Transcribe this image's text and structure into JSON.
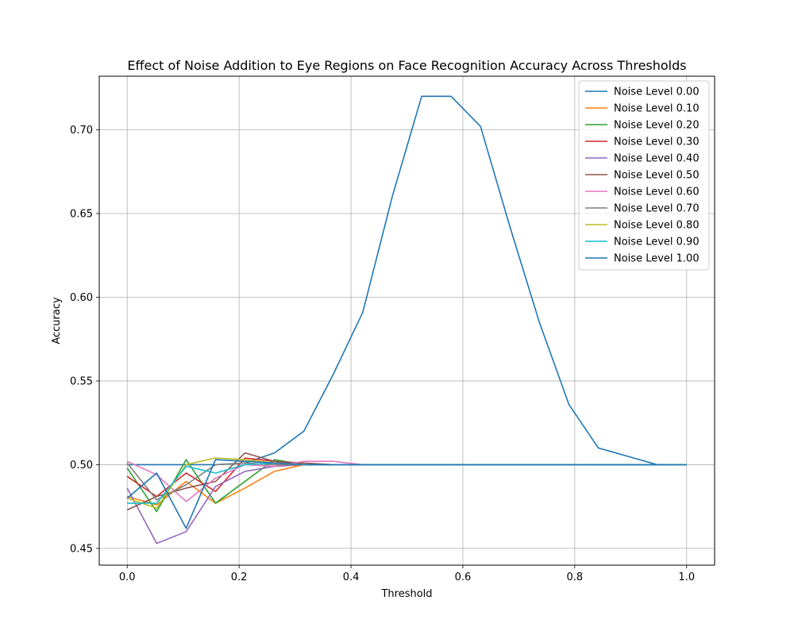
{
  "chart_data": {
    "type": "line",
    "title": "Effect of Noise Addition to Eye Regions on Face Recognition Accuracy Across Thresholds",
    "xlabel": "Threshold",
    "ylabel": "Accuracy",
    "xlim": [
      -0.05,
      1.05
    ],
    "ylim": [
      0.44,
      0.732
    ],
    "xticks": [
      0.0,
      0.2,
      0.4,
      0.6,
      0.8,
      1.0
    ],
    "xtick_labels": [
      "0.0",
      "0.2",
      "0.4",
      "0.6",
      "0.8",
      "1.0"
    ],
    "yticks": [
      0.45,
      0.5,
      0.55,
      0.6,
      0.65,
      0.7
    ],
    "ytick_labels": [
      "0.45",
      "0.50",
      "0.55",
      "0.60",
      "0.65",
      "0.70"
    ],
    "grid": true,
    "legend_position": "top-right",
    "x": [
      0.0,
      0.0526,
      0.1053,
      0.1579,
      0.2105,
      0.2632,
      0.3158,
      0.3684,
      0.4211,
      0.4737,
      0.5263,
      0.5789,
      0.6316,
      0.6842,
      0.7368,
      0.7895,
      0.8421,
      0.8947,
      0.9474,
      1.0
    ],
    "series": [
      {
        "name": "Noise Level 0.00",
        "color": "#1f77b4",
        "values": [
          0.5,
          0.5,
          0.5,
          0.5,
          0.501,
          0.507,
          0.52,
          0.554,
          0.591,
          0.66,
          0.72,
          0.72,
          0.702,
          0.642,
          0.585,
          0.536,
          0.51,
          0.505,
          0.5,
          0.5
        ]
      },
      {
        "name": "Noise Level 0.10",
        "color": "#ff7f0e",
        "values": [
          0.481,
          0.476,
          0.49,
          0.477,
          0.486,
          0.496,
          0.5,
          0.5,
          0.5,
          0.5,
          0.5,
          0.5,
          0.5,
          0.5,
          0.5,
          0.5,
          0.5,
          0.5,
          0.5,
          0.5
        ]
      },
      {
        "name": "Noise Level 0.20",
        "color": "#2ca02c",
        "values": [
          0.498,
          0.472,
          0.503,
          0.477,
          0.49,
          0.503,
          0.5,
          0.5,
          0.5,
          0.5,
          0.5,
          0.5,
          0.5,
          0.5,
          0.5,
          0.5,
          0.5,
          0.5,
          0.5,
          0.5
        ]
      },
      {
        "name": "Noise Level 0.30",
        "color": "#d62728",
        "values": [
          0.493,
          0.481,
          0.495,
          0.484,
          0.504,
          0.502,
          0.5,
          0.5,
          0.5,
          0.5,
          0.5,
          0.5,
          0.5,
          0.5,
          0.5,
          0.5,
          0.5,
          0.5,
          0.5,
          0.5
        ]
      },
      {
        "name": "Noise Level 0.40",
        "color": "#9467bd",
        "values": [
          0.486,
          0.453,
          0.46,
          0.487,
          0.496,
          0.499,
          0.5,
          0.5,
          0.5,
          0.5,
          0.5,
          0.5,
          0.5,
          0.5,
          0.5,
          0.5,
          0.5,
          0.5,
          0.5,
          0.5
        ]
      },
      {
        "name": "Noise Level 0.50",
        "color": "#8c564b",
        "values": [
          0.473,
          0.481,
          0.486,
          0.49,
          0.507,
          0.502,
          0.501,
          0.5,
          0.5,
          0.5,
          0.5,
          0.5,
          0.5,
          0.5,
          0.5,
          0.5,
          0.5,
          0.5,
          0.5,
          0.5
        ]
      },
      {
        "name": "Noise Level 0.60",
        "color": "#e377c2",
        "values": [
          0.502,
          0.494,
          0.478,
          0.492,
          0.5,
          0.499,
          0.502,
          0.502,
          0.5,
          0.5,
          0.5,
          0.5,
          0.5,
          0.5,
          0.5,
          0.5,
          0.5,
          0.5,
          0.5,
          0.5
        ]
      },
      {
        "name": "Noise Level 0.70",
        "color": "#7f7f7f",
        "values": [
          0.501,
          0.479,
          0.488,
          0.5,
          0.501,
          0.5,
          0.5,
          0.5,
          0.5,
          0.5,
          0.5,
          0.5,
          0.5,
          0.5,
          0.5,
          0.5,
          0.5,
          0.5,
          0.5,
          0.5
        ]
      },
      {
        "name": "Noise Level 0.80",
        "color": "#bcbd22",
        "values": [
          0.48,
          0.474,
          0.5,
          0.504,
          0.503,
          0.501,
          0.5,
          0.5,
          0.5,
          0.5,
          0.5,
          0.5,
          0.5,
          0.5,
          0.5,
          0.5,
          0.5,
          0.5,
          0.5,
          0.5
        ]
      },
      {
        "name": "Noise Level 0.90",
        "color": "#17becf",
        "values": [
          0.477,
          0.477,
          0.499,
          0.495,
          0.5,
          0.501,
          0.5,
          0.5,
          0.5,
          0.5,
          0.5,
          0.5,
          0.5,
          0.5,
          0.5,
          0.5,
          0.5,
          0.5,
          0.5,
          0.5
        ]
      },
      {
        "name": "Noise Level 1.00",
        "color": "#1f77b4",
        "values": [
          0.48,
          0.495,
          0.462,
          0.503,
          0.502,
          0.501,
          0.5,
          0.5,
          0.5,
          0.5,
          0.5,
          0.5,
          0.5,
          0.5,
          0.5,
          0.5,
          0.5,
          0.5,
          0.5,
          0.5
        ]
      }
    ]
  }
}
